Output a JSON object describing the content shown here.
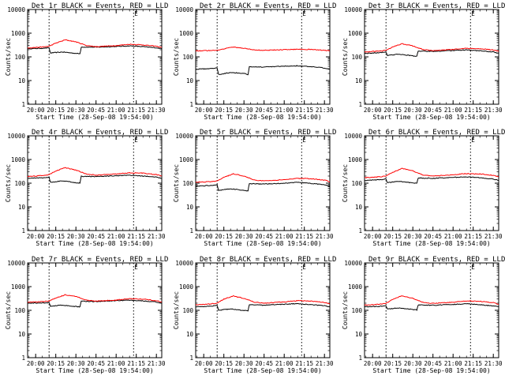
{
  "chart_data": [
    {
      "type": "line",
      "title": "Det 1r BLACK = Events, RED = LLD",
      "xlabel": "Start Time (28-Sep-08 19:54:00)",
      "ylabel": "Counts/sec",
      "yscale": "log",
      "ylim": [
        1,
        10000
      ],
      "xlim": [
        "19:54",
        "21:34"
      ],
      "x_ticks": [
        "20:00",
        "20:15",
        "20:30",
        "20:45",
        "21:00",
        "21:15",
        "21:30"
      ],
      "y_ticks": [
        "1",
        "10",
        "100",
        "1000",
        "10000"
      ],
      "markers": [
        {
          "time": "20:10",
          "label": ""
        },
        {
          "time": "21:13",
          "label": "E"
        }
      ],
      "series": [
        {
          "color": "#000000",
          "x": [
            "19:54",
            "20:05",
            "20:10",
            "20:11",
            "20:20",
            "20:30",
            "20:33",
            "20:34",
            "20:45",
            "21:00",
            "21:10",
            "21:20",
            "21:30",
            "21:34"
          ],
          "y": [
            220,
            230,
            240,
            145,
            160,
            140,
            135,
            260,
            255,
            275,
            290,
            270,
            240,
            220
          ]
        },
        {
          "color": "#ff0000",
          "x": [
            "19:54",
            "20:05",
            "20:10",
            "20:15",
            "20:22",
            "20:30",
            "20:38",
            "20:45",
            "21:00",
            "21:10",
            "21:20",
            "21:30",
            "21:34"
          ],
          "y": [
            240,
            260,
            280,
            380,
            520,
            430,
            300,
            270,
            300,
            340,
            320,
            280,
            250
          ]
        }
      ]
    },
    {
      "type": "line",
      "title": "Det 2r BLACK = Events, RED = LLD",
      "xlabel": "Start Time (28-Sep-08 19:54:00)",
      "ylabel": "Counts/sec",
      "yscale": "log",
      "ylim": [
        1,
        10000
      ],
      "xlim": [
        "19:54",
        "21:34"
      ],
      "x_ticks": [
        "20:00",
        "20:15",
        "20:30",
        "20:45",
        "21:00",
        "21:15",
        "21:30"
      ],
      "y_ticks": [
        "1",
        "10",
        "100",
        "1000",
        "10000"
      ],
      "markers": [
        {
          "time": "20:10",
          "label": ""
        },
        {
          "time": "21:13",
          "label": "E"
        }
      ],
      "series": [
        {
          "color": "#000000",
          "x": [
            "19:54",
            "20:05",
            "20:10",
            "20:11",
            "20:20",
            "20:30",
            "20:33",
            "20:34",
            "20:45",
            "21:00",
            "21:10",
            "21:20",
            "21:30",
            "21:34"
          ],
          "y": [
            30,
            32,
            34,
            18,
            22,
            20,
            18,
            38,
            37,
            40,
            42,
            38,
            34,
            30
          ]
        },
        {
          "color": "#ff0000",
          "x": [
            "19:54",
            "20:05",
            "20:10",
            "20:15",
            "20:22",
            "20:30",
            "20:38",
            "20:45",
            "21:00",
            "21:10",
            "21:20",
            "21:30",
            "21:34"
          ],
          "y": [
            180,
            185,
            190,
            220,
            260,
            230,
            195,
            190,
            200,
            210,
            205,
            190,
            180
          ]
        }
      ]
    },
    {
      "type": "line",
      "title": "Det 3r BLACK = Events, RED = LLD",
      "xlabel": "Start Time (28-Sep-08 19:54:00)",
      "ylabel": "Counts/sec",
      "yscale": "log",
      "ylim": [
        1,
        10000
      ],
      "xlim": [
        "19:54",
        "21:34"
      ],
      "x_ticks": [
        "20:00",
        "20:15",
        "20:30",
        "20:45",
        "21:00",
        "21:15",
        "21:30"
      ],
      "y_ticks": [
        "1",
        "10",
        "100",
        "1000",
        "10000"
      ],
      "markers": [
        {
          "time": "20:10",
          "label": ""
        },
        {
          "time": "21:13",
          "label": "E"
        }
      ],
      "series": [
        {
          "color": "#000000",
          "x": [
            "19:54",
            "20:05",
            "20:10",
            "20:11",
            "20:20",
            "20:30",
            "20:33",
            "20:34",
            "20:45",
            "21:00",
            "21:10",
            "21:20",
            "21:30",
            "21:34"
          ],
          "y": [
            140,
            150,
            160,
            115,
            130,
            110,
            105,
            175,
            170,
            185,
            195,
            180,
            160,
            140
          ]
        },
        {
          "color": "#ff0000",
          "x": [
            "19:54",
            "20:05",
            "20:10",
            "20:15",
            "20:22",
            "20:30",
            "20:38",
            "20:45",
            "21:00",
            "21:10",
            "21:20",
            "21:30",
            "21:34"
          ],
          "y": [
            160,
            175,
            190,
            260,
            360,
            290,
            200,
            185,
            205,
            230,
            220,
            195,
            170
          ]
        }
      ]
    },
    {
      "type": "line",
      "title": "Det 4r BLACK = Events, RED = LLD",
      "xlabel": "Start Time (28-Sep-08 19:54:00)",
      "ylabel": "Counts/sec",
      "yscale": "log",
      "ylim": [
        1,
        10000
      ],
      "xlim": [
        "19:54",
        "21:34"
      ],
      "x_ticks": [
        "20:00",
        "20:15",
        "20:30",
        "20:45",
        "21:00",
        "21:15",
        "21:30"
      ],
      "y_ticks": [
        "1",
        "10",
        "100",
        "1000",
        "10000"
      ],
      "markers": [
        {
          "time": "20:10",
          "label": ""
        },
        {
          "time": "21:13",
          "label": "E"
        }
      ],
      "series": [
        {
          "color": "#000000",
          "x": [
            "19:54",
            "20:05",
            "20:10",
            "20:11",
            "20:20",
            "20:30",
            "20:33",
            "20:34",
            "20:45",
            "21:00",
            "21:10",
            "21:20",
            "21:30",
            "21:34"
          ],
          "y": [
            160,
            170,
            180,
            110,
            125,
            105,
            100,
            195,
            190,
            205,
            215,
            200,
            180,
            160
          ]
        },
        {
          "color": "#ff0000",
          "x": [
            "19:54",
            "20:05",
            "20:10",
            "20:15",
            "20:22",
            "20:30",
            "20:38",
            "20:45",
            "21:00",
            "21:10",
            "21:20",
            "21:30",
            "21:34"
          ],
          "y": [
            190,
            210,
            230,
            330,
            450,
            360,
            240,
            220,
            245,
            275,
            265,
            230,
            200
          ]
        }
      ]
    },
    {
      "type": "line",
      "title": "Det 5r BLACK = Events, RED = LLD",
      "xlabel": "Start Time (28-Sep-08 19:54:00)",
      "ylabel": "Counts/sec",
      "yscale": "log",
      "ylim": [
        1,
        10000
      ],
      "xlim": [
        "19:54",
        "21:34"
      ],
      "x_ticks": [
        "20:00",
        "20:15",
        "20:30",
        "20:45",
        "21:00",
        "21:15",
        "21:30"
      ],
      "y_ticks": [
        "1",
        "10",
        "100",
        "1000",
        "10000"
      ],
      "markers": [
        {
          "time": "20:10",
          "label": ""
        },
        {
          "time": "21:13",
          "label": "E"
        }
      ],
      "series": [
        {
          "color": "#000000",
          "x": [
            "19:54",
            "20:05",
            "20:10",
            "20:11",
            "20:20",
            "20:30",
            "20:33",
            "20:34",
            "20:45",
            "21:00",
            "21:10",
            "21:20",
            "21:30",
            "21:34"
          ],
          "y": [
            75,
            80,
            85,
            50,
            58,
            50,
            48,
            95,
            92,
            100,
            108,
            98,
            85,
            75
          ]
        },
        {
          "color": "#ff0000",
          "x": [
            "19:54",
            "20:05",
            "20:10",
            "20:15",
            "20:22",
            "20:30",
            "20:38",
            "20:45",
            "21:00",
            "21:10",
            "21:20",
            "21:30",
            "21:34"
          ],
          "y": [
            110,
            115,
            125,
            175,
            250,
            200,
            135,
            125,
            140,
            160,
            155,
            135,
            115
          ]
        }
      ]
    },
    {
      "type": "line",
      "title": "Det 6r BLACK = Events, RED = LLD",
      "xlabel": "Start Time (28-Sep-08 19:54:00)",
      "ylabel": "Counts/sec",
      "yscale": "log",
      "ylim": [
        1,
        10000
      ],
      "xlim": [
        "19:54",
        "21:34"
      ],
      "x_ticks": [
        "20:00",
        "20:15",
        "20:30",
        "20:45",
        "21:00",
        "21:15",
        "21:30"
      ],
      "y_ticks": [
        "1",
        "10",
        "100",
        "1000",
        "10000"
      ],
      "markers": [
        {
          "time": "20:10",
          "label": ""
        },
        {
          "time": "21:13",
          "label": "E"
        }
      ],
      "series": [
        {
          "color": "#000000",
          "x": [
            "19:54",
            "20:05",
            "20:10",
            "20:11",
            "20:20",
            "20:30",
            "20:33",
            "20:34",
            "20:45",
            "21:00",
            "21:10",
            "21:20",
            "21:30",
            "21:34"
          ],
          "y": [
            130,
            140,
            150,
            105,
            120,
            102,
            98,
            165,
            160,
            175,
            185,
            170,
            150,
            130
          ]
        },
        {
          "color": "#ff0000",
          "x": [
            "19:54",
            "20:05",
            "20:10",
            "20:15",
            "20:22",
            "20:30",
            "20:38",
            "20:45",
            "21:00",
            "21:10",
            "21:20",
            "21:30",
            "21:34"
          ],
          "y": [
            170,
            185,
            200,
            290,
            420,
            330,
            220,
            200,
            225,
            255,
            245,
            215,
            185
          ]
        }
      ]
    },
    {
      "type": "line",
      "title": "Det 7r BLACK = Events, RED = LLD",
      "xlabel": "Start Time (28-Sep-08 19:54:00)",
      "ylabel": "Counts/sec",
      "yscale": "log",
      "ylim": [
        1,
        10000
      ],
      "xlim": [
        "19:54",
        "21:34"
      ],
      "x_ticks": [
        "20:00",
        "20:15",
        "20:30",
        "20:45",
        "21:00",
        "21:15",
        "21:30"
      ],
      "y_ticks": [
        "1",
        "10",
        "100",
        "1000",
        "10000"
      ],
      "markers": [
        {
          "time": "20:10",
          "label": ""
        },
        {
          "time": "21:13",
          "label": "E"
        }
      ],
      "series": [
        {
          "color": "#000000",
          "x": [
            "19:54",
            "20:05",
            "20:10",
            "20:11",
            "20:20",
            "20:30",
            "20:33",
            "20:34",
            "20:45",
            "21:00",
            "21:10",
            "21:20",
            "21:30",
            "21:34"
          ],
          "y": [
            200,
            205,
            210,
            150,
            165,
            145,
            140,
            240,
            235,
            255,
            270,
            250,
            225,
            200
          ]
        },
        {
          "color": "#ff0000",
          "x": [
            "19:54",
            "20:05",
            "20:10",
            "20:15",
            "20:22",
            "20:30",
            "20:38",
            "20:45",
            "21:00",
            "21:10",
            "21:20",
            "21:30",
            "21:34"
          ],
          "y": [
            220,
            230,
            250,
            330,
            450,
            380,
            270,
            245,
            270,
            310,
            295,
            255,
            225
          ]
        }
      ]
    },
    {
      "type": "line",
      "title": "Det 8r BLACK = Events, RED = LLD",
      "xlabel": "Start Time (28-Sep-08 19:54:00)",
      "ylabel": "Counts/sec",
      "yscale": "log",
      "ylim": [
        1,
        10000
      ],
      "xlim": [
        "19:54",
        "21:34"
      ],
      "x_ticks": [
        "20:00",
        "20:15",
        "20:30",
        "20:45",
        "21:00",
        "21:15",
        "21:30"
      ],
      "y_ticks": [
        "1",
        "10",
        "100",
        "1000",
        "10000"
      ],
      "markers": [
        {
          "time": "20:10",
          "label": ""
        },
        {
          "time": "21:13",
          "label": "E"
        }
      ],
      "series": [
        {
          "color": "#000000",
          "x": [
            "19:54",
            "20:05",
            "20:10",
            "20:11",
            "20:20",
            "20:30",
            "20:33",
            "20:34",
            "20:45",
            "21:00",
            "21:10",
            "21:20",
            "21:30",
            "21:34"
          ],
          "y": [
            140,
            150,
            160,
            100,
            115,
            98,
            95,
            170,
            165,
            180,
            190,
            175,
            155,
            140
          ]
        },
        {
          "color": "#ff0000",
          "x": [
            "19:54",
            "20:05",
            "20:10",
            "20:15",
            "20:22",
            "20:30",
            "20:38",
            "20:45",
            "21:00",
            "21:10",
            "21:20",
            "21:30",
            "21:34"
          ],
          "y": [
            170,
            185,
            200,
            300,
            400,
            320,
            220,
            200,
            225,
            255,
            245,
            215,
            185
          ]
        }
      ]
    },
    {
      "type": "line",
      "title": "Det 9r BLACK = Events, RED = LLD",
      "xlabel": "Start Time (28-Sep-08 19:54:00)",
      "ylabel": "Counts/sec",
      "yscale": "log",
      "ylim": [
        1,
        10000
      ],
      "xlim": [
        "19:54",
        "21:34"
      ],
      "x_ticks": [
        "20:00",
        "20:15",
        "20:30",
        "20:45",
        "21:00",
        "21:15",
        "21:30"
      ],
      "y_ticks": [
        "1",
        "10",
        "100",
        "1000",
        "10000"
      ],
      "markers": [
        {
          "time": "20:10",
          "label": ""
        },
        {
          "time": "21:13",
          "label": "E"
        }
      ],
      "series": [
        {
          "color": "#000000",
          "x": [
            "19:54",
            "20:05",
            "20:10",
            "20:11",
            "20:20",
            "20:30",
            "20:33",
            "20:34",
            "20:45",
            "21:00",
            "21:10",
            "21:20",
            "21:30",
            "21:34"
          ],
          "y": [
            140,
            148,
            155,
            112,
            126,
            108,
            104,
            168,
            163,
            178,
            188,
            172,
            152,
            140
          ]
        },
        {
          "color": "#ff0000",
          "x": [
            "19:54",
            "20:05",
            "20:10",
            "20:15",
            "20:22",
            "20:30",
            "20:38",
            "20:45",
            "21:00",
            "21:10",
            "21:20",
            "21:30",
            "21:34"
          ],
          "y": [
            165,
            180,
            195,
            290,
            410,
            320,
            215,
            195,
            220,
            250,
            240,
            210,
            180
          ]
        }
      ]
    }
  ]
}
